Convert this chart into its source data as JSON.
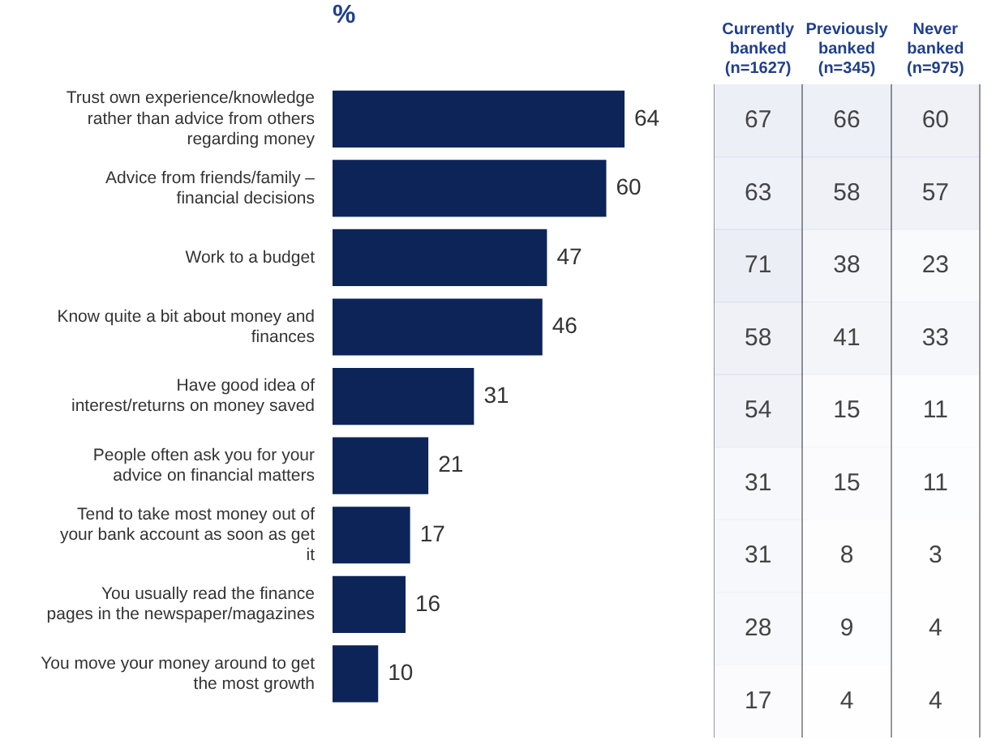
{
  "chart_data": [
    {
      "type": "bar",
      "orientation": "horizontal",
      "xlabel": "%",
      "categories": [
        "Trust own experience/knowledge rather than advice from others regarding money",
        "Advice from friends/family – financial decisions",
        "Work to a budget",
        "Know quite a bit about money and finances",
        "Have good idea of interest/returns on money saved",
        "People often ask you for your advice on financial matters",
        "Tend to take most money out of your bank account as soon as get it",
        "You usually read the finance pages in the newspaper/magazines",
        "You move your money around to get the most growth"
      ],
      "values": [
        64,
        60,
        47,
        46,
        31,
        21,
        17,
        16,
        10
      ],
      "color": "#0d2459",
      "tick_labels": "y",
      "data_labels": true,
      "grid": false,
      "legend": false
    },
    {
      "type": "heatmap",
      "categories": [
        "Currently banked (n=1627)",
        "Previously banked (n=345)",
        "Never banked (n=975)"
      ],
      "y_categories": [
        null,
        null,
        null,
        null,
        null,
        null,
        null,
        null,
        null
      ],
      "cells": [
        [
          67,
          66,
          60
        ],
        [
          63,
          58,
          57
        ],
        [
          71,
          38,
          23
        ],
        [
          58,
          41,
          33
        ],
        [
          54,
          15,
          11
        ],
        [
          31,
          15,
          11
        ],
        [
          31,
          8,
          3
        ],
        [
          28,
          9,
          4
        ],
        [
          17,
          4,
          4
        ]
      ],
      "cell_labels": [
        [
          "67",
          "66",
          "60"
        ],
        [
          "63",
          "58",
          "57"
        ],
        [
          "71",
          "38",
          "23"
        ],
        [
          "58",
          "41",
          "33"
        ],
        [
          "54",
          "15",
          "11"
        ],
        [
          "31",
          "15",
          "11"
        ],
        [
          "31",
          "8",
          "3"
        ],
        [
          "28",
          "9",
          "4"
        ],
        [
          "17",
          "4",
          "4"
        ]
      ],
      "tick_labels": "x"
    }
  ]
}
